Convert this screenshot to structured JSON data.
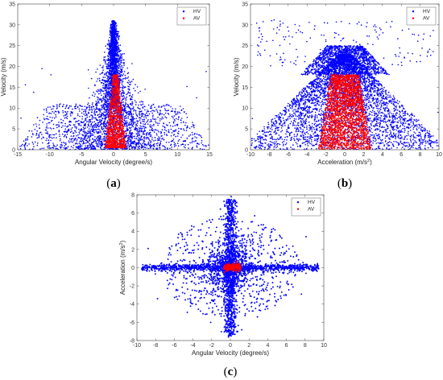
{
  "chart_data": [
    {
      "id": "a",
      "type": "scatter",
      "caption_open": "(",
      "caption_letter": "a",
      "caption_close": ")",
      "xlabel": "Angular Velocity (degree/s)",
      "ylabel": "Velocity (m/s)",
      "xlim": [
        -15,
        15
      ],
      "ylim": [
        0,
        35
      ],
      "xticks": [
        -15,
        -10,
        -5,
        0,
        5,
        10,
        15
      ],
      "yticks": [
        0,
        5,
        10,
        15,
        20,
        25,
        30,
        35
      ],
      "grid": false,
      "legend": "top-right",
      "series": [
        {
          "name": "HV",
          "color": "#0000ff",
          "cloud": {
            "kind": "v_shape",
            "x_center": 0,
            "spread_min": 3.5,
            "spread_slope": -0.12,
            "y_max": 31,
            "x_extent": 15,
            "count": 2600
          },
          "points": [
            [
              -14.5,
              7.6
            ],
            [
              -13.8,
              15.6
            ],
            [
              -12.5,
              13.8
            ],
            [
              -11.2,
              19.5
            ],
            [
              -9.8,
              18.0
            ],
            [
              14.5,
              18.8
            ],
            [
              13.0,
              12.5
            ],
            [
              11.5,
              15.2
            ],
            [
              0.0,
              31.0
            ],
            [
              -0.3,
              29.5
            ],
            [
              0.4,
              28.6
            ],
            [
              -10.0,
              0.5
            ],
            [
              9.5,
              1.2
            ]
          ]
        },
        {
          "name": "AV",
          "color": "#ff0000",
          "cloud": {
            "kind": "core",
            "x_center": 0.3,
            "x_spread_low": 1.6,
            "x_spread_high": 0.4,
            "y_min": 0.5,
            "y_max": 18,
            "count": 1200
          },
          "points": [
            [
              0,
              18.0
            ],
            [
              -0.2,
              16.5
            ],
            [
              0.1,
              14.5
            ],
            [
              2.0,
              4.0
            ],
            [
              2.4,
              3.2
            ],
            [
              -1.5,
              2.0
            ]
          ]
        }
      ]
    },
    {
      "id": "b",
      "type": "scatter",
      "caption_open": "(",
      "caption_letter": "b",
      "caption_close": ")",
      "xlabel_main": "Acceleration (m/s",
      "xlabel_sup": "2",
      "xlabel_end": ")",
      "ylabel": "Velocity (m/s)",
      "xlim": [
        -10,
        10
      ],
      "ylim": [
        0,
        35
      ],
      "xticks": [
        -10,
        -8,
        -6,
        -4,
        -2,
        0,
        2,
        4,
        6,
        8,
        10
      ],
      "yticks": [
        0,
        5,
        10,
        15,
        20,
        25,
        30,
        35
      ],
      "grid": false,
      "legend": "top-right",
      "series": [
        {
          "name": "HV",
          "color": "#0000ff",
          "cloud": {
            "kind": "triangle",
            "x_center": 0,
            "y_top": 23,
            "half_width_at_zero": 10.5,
            "count": 4200
          },
          "points": [
            [
              -7.5,
              31.2
            ],
            [
              3.2,
              30.0
            ],
            [
              8.4,
              27.8
            ],
            [
              -4.5,
              28.1
            ],
            [
              0.5,
              30.3
            ],
            [
              6.8,
              29.0
            ],
            [
              -2.0,
              26.0
            ],
            [
              1.6,
              25.3
            ],
            [
              -9.8,
              7.5
            ],
            [
              9.9,
              9.0
            ]
          ]
        },
        {
          "name": "AV",
          "color": "#ff0000",
          "cloud": {
            "kind": "dome",
            "x_center": 0,
            "x_half_width_low": 2.8,
            "x_half_width_high": 1.5,
            "y_min": 0,
            "y_max": 18,
            "count": 2600
          },
          "points": [
            [
              -1.0,
              18.2
            ],
            [
              0.5,
              18.0
            ],
            [
              1.2,
              17.6
            ]
          ]
        }
      ]
    },
    {
      "id": "c",
      "type": "scatter",
      "caption_open": "(",
      "caption_letter": "c",
      "caption_close": ")",
      "xlabel": "Angular Velocity (degree/s)",
      "ylabel_main": "Acceleration (m/s",
      "ylabel_sup": "2",
      "ylabel_end": ")",
      "xlim": [
        -10,
        10
      ],
      "ylim": [
        -8,
        8
      ],
      "xticks": [
        -10,
        -8,
        -6,
        -4,
        -2,
        0,
        2,
        4,
        6,
        8,
        10
      ],
      "yticks": [
        -8,
        -6,
        -4,
        -2,
        0,
        2,
        4,
        6,
        8
      ],
      "grid": false,
      "legend": "top-right",
      "series": [
        {
          "name": "HV",
          "color": "#0000ff",
          "cloud": {
            "kind": "cross",
            "x_center": 0,
            "y_center": 0,
            "x_extent": 9.5,
            "y_extent": 7.5,
            "count": 2400
          },
          "points": [
            [
              0.1,
              7.8
            ],
            [
              0.0,
              7.2
            ],
            [
              -0.2,
              -7.6
            ],
            [
              0.3,
              -6.3
            ],
            [
              9.4,
              0.0
            ],
            [
              -9.3,
              0.1
            ],
            [
              -8.8,
              2.1
            ],
            [
              7.6,
              -2.9
            ],
            [
              4.6,
              4.3
            ],
            [
              -4.6,
              -4.9
            ],
            [
              5.1,
              -3.5
            ],
            [
              -5.6,
              3.3
            ],
            [
              8.1,
              3.4
            ],
            [
              -7.8,
              -3.4
            ],
            [
              2.6,
              5.7
            ],
            [
              -3.0,
              4.8
            ],
            [
              2.9,
              -5.4
            ],
            [
              -2.1,
              -6.0
            ],
            [
              6.0,
              1.8
            ],
            [
              -6.5,
              -1.7
            ]
          ]
        },
        {
          "name": "AV",
          "color": "#ff0000",
          "cloud": {
            "kind": "blob",
            "x_center": 0.2,
            "y_center": 0.05,
            "x_spread": 0.9,
            "y_spread": 0.18,
            "count": 420
          },
          "points": []
        }
      ]
    }
  ]
}
